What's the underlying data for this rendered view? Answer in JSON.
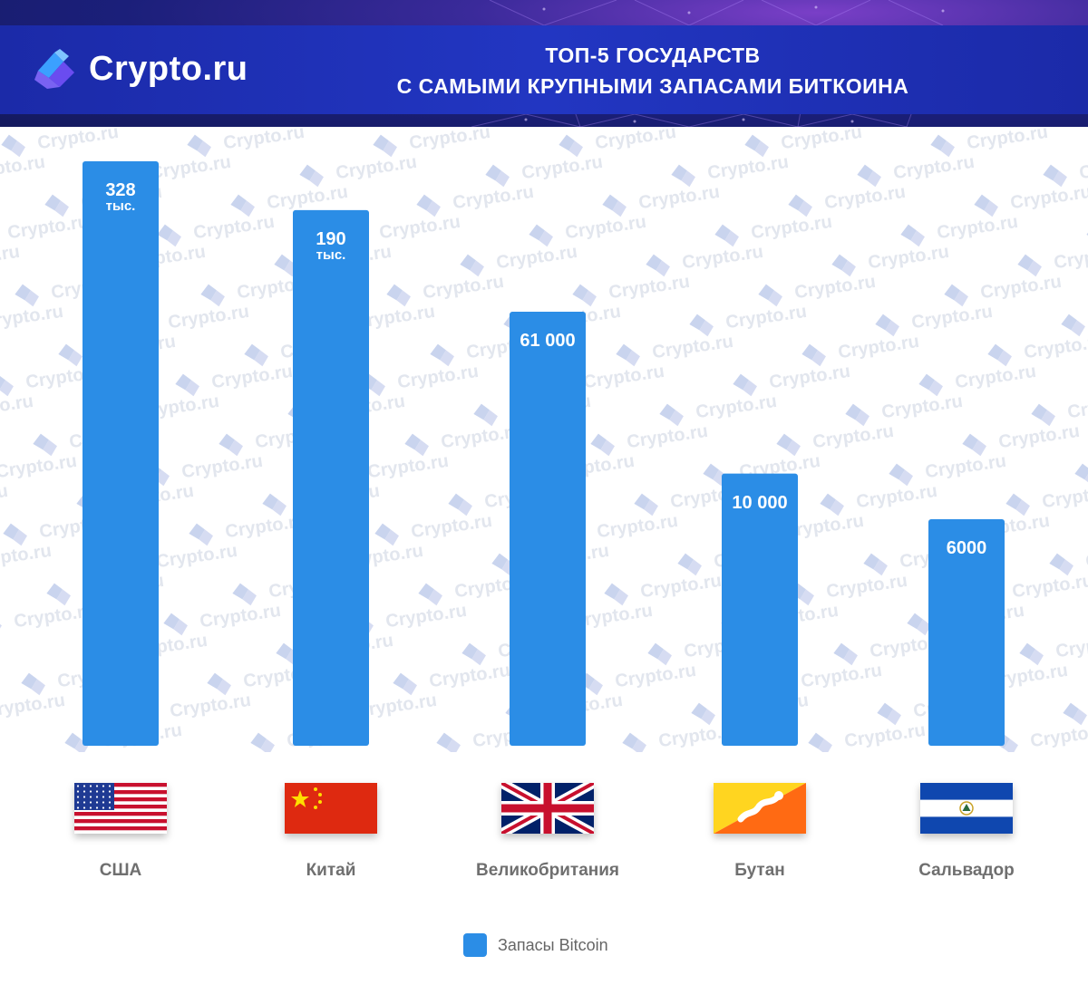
{
  "header": {
    "brand": "Crypto.ru",
    "title_line1": "ТОП-5 ГОСУДАРСТВ",
    "title_line2": "С САМЫМИ КРУПНЫМИ ЗАПАСАМИ БИТКОИНА"
  },
  "watermark_text": "Crypto.ru",
  "colors": {
    "bar": "#2b8de6",
    "header": "#1b2aa8",
    "country_text": "#6f6f6f"
  },
  "chart_data": {
    "type": "bar",
    "title": "ТОП-5 ГОСУДАРСТВ С САМЫМИ КРУПНЫМИ ЗАПАСАМИ БИТКОИНА",
    "categories": [
      "США",
      "Китай",
      "Великобритания",
      "Бутан",
      "Сальвадор"
    ],
    "series": [
      {
        "name": "Запасы Bitcoin",
        "values": [
          328000,
          190000,
          61000,
          10000,
          6000
        ]
      }
    ],
    "data_labels": [
      {
        "main": "328",
        "sub": "тыс."
      },
      {
        "main": "190",
        "sub": "тыс."
      },
      {
        "main": "61 000",
        "sub": ""
      },
      {
        "main": "10 000",
        "sub": ""
      },
      {
        "main": "6000",
        "sub": ""
      }
    ],
    "flags": [
      "us-flag-icon",
      "china-flag-icon",
      "uk-flag-icon",
      "bhutan-flag-icon",
      "el-salvador-flag-icon"
    ],
    "legend": {
      "label": "Запасы Bitcoin",
      "position": "bottom"
    },
    "grid": false,
    "xlabel": "",
    "ylabel": ""
  }
}
